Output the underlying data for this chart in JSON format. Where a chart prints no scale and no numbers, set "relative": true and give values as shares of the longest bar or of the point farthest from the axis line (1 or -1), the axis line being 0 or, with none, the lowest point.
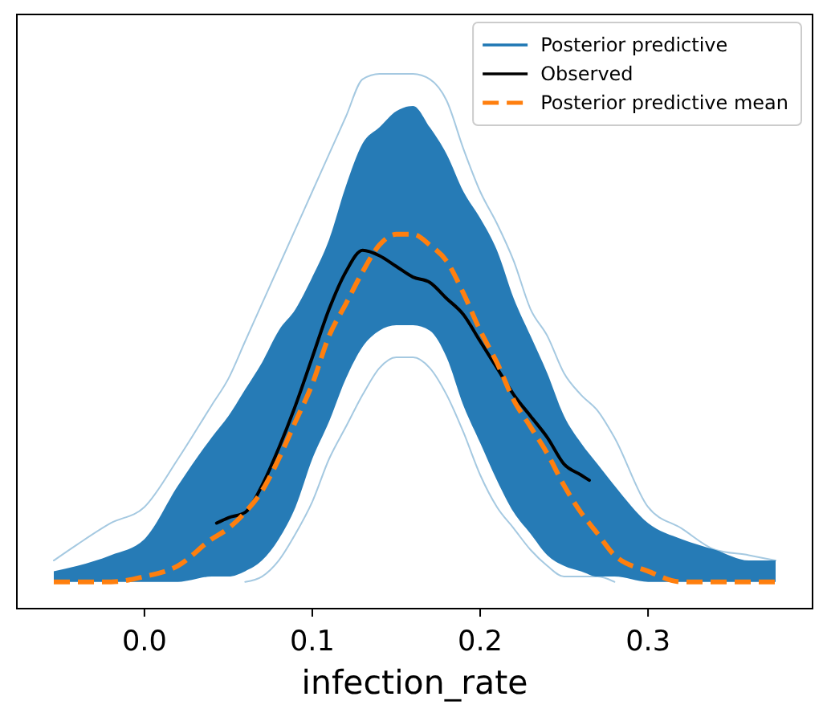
{
  "chart_data": {
    "type": "line",
    "relative": true,
    "xlabel": "infection_rate",
    "xlim": [
      -0.076,
      0.398
    ],
    "xticks": [
      {
        "value": 0,
        "label": "0.0"
      },
      0.1,
      0.2,
      0.3
    ],
    "tick_labels": "x",
    "legend": "top right",
    "x": [
      -0.054,
      -0.04,
      -0.02,
      0,
      0.02,
      0.04,
      0.05,
      0.06,
      0.07,
      0.08,
      0.09,
      0.1,
      0.11,
      0.12,
      0.13,
      0.14,
      0.15,
      0.16,
      0.17,
      0.18,
      0.19,
      0.2,
      0.21,
      0.22,
      0.23,
      0.24,
      0.25,
      0.26,
      0.27,
      0.28,
      0.3,
      0.32,
      0.34,
      0.36,
      0.376
    ],
    "series": [
      {
        "name": "Posterior predictive",
        "color": "#1f77b4",
        "values": [
          0.09,
          0.12,
          0.16,
          0.19,
          0.28,
          0.38,
          0.43,
          0.5,
          0.57,
          0.64,
          0.71,
          0.78,
          0.85,
          0.92,
          0.99,
          1.0,
          1.0,
          1.0,
          0.99,
          0.95,
          0.86,
          0.78,
          0.72,
          0.65,
          0.56,
          0.51,
          0.44,
          0.4,
          0.37,
          0.32,
          0.19,
          0.15,
          0.11,
          0.1,
          0.09
        ],
        "lower": [
          0.05,
          0.05,
          0.05,
          0.05,
          0.05,
          0.06,
          0.06,
          0.07,
          0.09,
          0.13,
          0.19,
          0.28,
          0.35,
          0.43,
          0.49,
          0.52,
          0.53,
          0.53,
          0.52,
          0.47,
          0.38,
          0.31,
          0.24,
          0.18,
          0.14,
          0.1,
          0.08,
          0.07,
          0.06,
          0.06,
          0.05,
          0.05,
          0.05,
          0.05,
          0.05
        ],
        "upper": [
          0.07,
          0.08,
          0.1,
          0.13,
          0.23,
          0.32,
          0.36,
          0.41,
          0.46,
          0.52,
          0.56,
          0.62,
          0.69,
          0.79,
          0.87,
          0.9,
          0.93,
          0.94,
          0.9,
          0.85,
          0.78,
          0.73,
          0.67,
          0.58,
          0.51,
          0.44,
          0.36,
          0.31,
          0.27,
          0.23,
          0.16,
          0.13,
          0.11,
          0.09,
          0.09
        ]
      },
      {
        "color": "#1f77b4",
        "x": [
          0.06,
          0.07,
          0.08,
          0.09,
          0.1,
          0.11,
          0.12,
          0.13,
          0.14,
          0.15,
          0.16,
          0.17,
          0.18,
          0.19,
          0.2,
          0.21,
          0.22,
          0.23,
          0.24,
          0.25,
          0.26,
          0.27,
          0.28
        ],
        "values": [
          0.05,
          0.06,
          0.09,
          0.14,
          0.2,
          0.28,
          0.34,
          0.4,
          0.45,
          0.47,
          0.47,
          0.45,
          0.4,
          0.33,
          0.25,
          0.19,
          0.15,
          0.11,
          0.08,
          0.06,
          0.06,
          0.06,
          0.05
        ]
      },
      {
        "name": "Observed",
        "color": "#000000",
        "x": [
          0.043,
          0.05,
          0.06,
          0.07,
          0.08,
          0.09,
          0.1,
          0.11,
          0.12,
          0.13,
          0.14,
          0.15,
          0.16,
          0.17,
          0.18,
          0.19,
          0.2,
          0.21,
          0.22,
          0.23,
          0.24,
          0.25,
          0.26,
          0.265
        ],
        "values": [
          0.16,
          0.17,
          0.18,
          0.23,
          0.3,
          0.38,
          0.47,
          0.56,
          0.63,
          0.67,
          0.66,
          0.64,
          0.62,
          0.61,
          0.58,
          0.55,
          0.5,
          0.45,
          0.4,
          0.36,
          0.32,
          0.27,
          0.25,
          0.24
        ]
      },
      {
        "name": "Posterior predictive mean",
        "color": "#ff7f0e",
        "line_style": "dashed",
        "values": [
          0.05,
          0.05,
          0.05,
          0.06,
          0.08,
          0.13,
          0.15,
          0.18,
          0.22,
          0.28,
          0.35,
          0.42,
          0.51,
          0.57,
          0.63,
          0.68,
          0.7,
          0.7,
          0.68,
          0.65,
          0.59,
          0.52,
          0.46,
          0.39,
          0.34,
          0.29,
          0.23,
          0.18,
          0.14,
          0.1,
          0.07,
          0.05,
          0.05,
          0.05,
          0.05
        ]
      }
    ]
  }
}
